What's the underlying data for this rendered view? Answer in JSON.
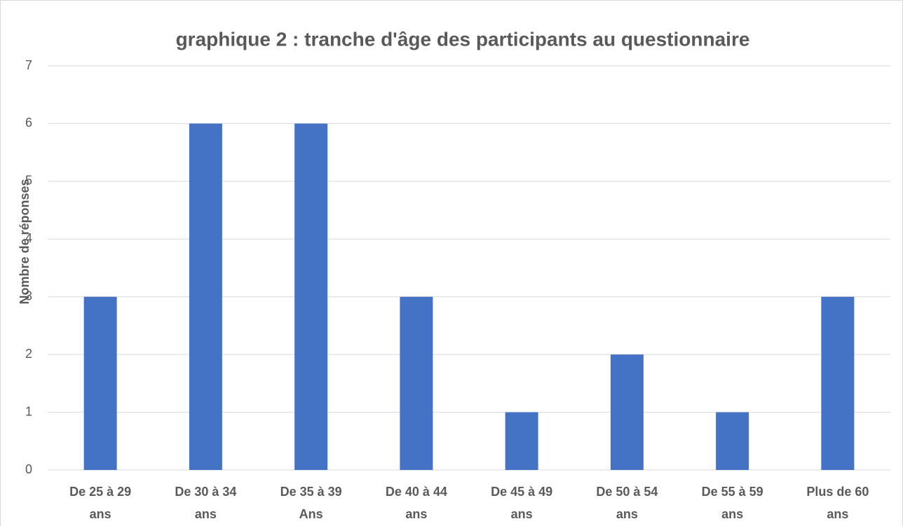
{
  "chart_data": {
    "type": "bar",
    "title": "graphique 2 : tranche d'âge des participants au questionnaire",
    "y_label": "Nombre de réponses",
    "categories": [
      "De 25 à 29 ans",
      "De 30 à 34 ans",
      "De 35 à 39 Ans",
      "De 40 à 44 ans",
      "De 45 à 49 ans",
      "De 50 à 54 ans",
      "De 55 à 59 ans",
      "Plus de 60 ans"
    ],
    "values": [
      3,
      6,
      6,
      3,
      1,
      2,
      1,
      3
    ],
    "color": "#4472c4",
    "ylim": [
      0,
      7
    ],
    "yticks": [
      0,
      1,
      2,
      3,
      4,
      5,
      6,
      7
    ],
    "grid": true
  }
}
